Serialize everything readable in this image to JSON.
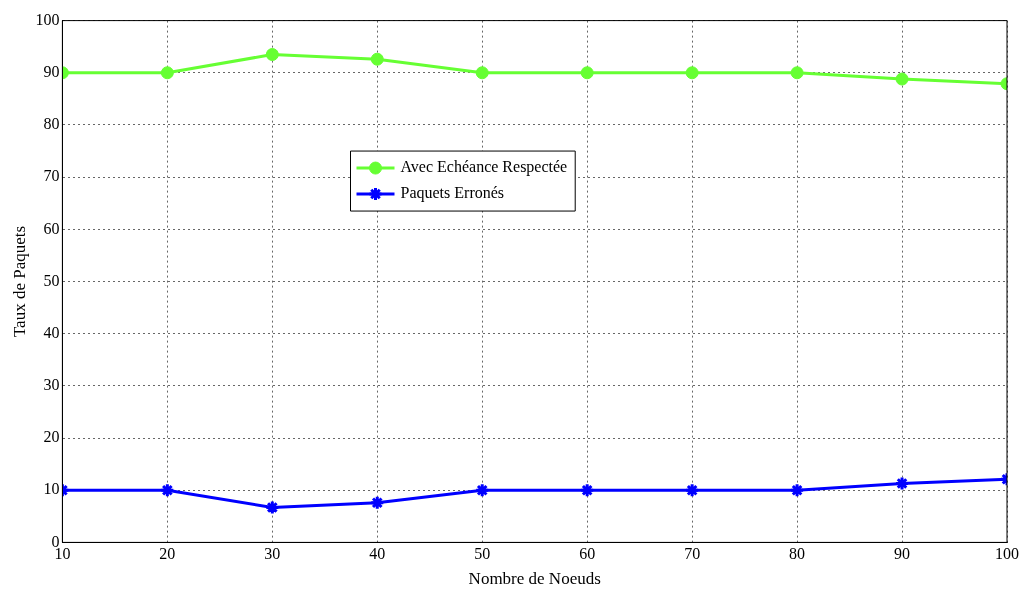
{
  "chart_data": {
    "type": "line",
    "xlabel": "Nombre de Noeuds",
    "ylabel": "Taux de Paquets",
    "x": [
      10,
      20,
      30,
      40,
      50,
      60,
      70,
      80,
      90,
      100
    ],
    "xlim": [
      10,
      100
    ],
    "xticks": [
      10,
      20,
      30,
      40,
      50,
      60,
      70,
      80,
      90,
      100
    ],
    "ylim": [
      0,
      100
    ],
    "yticks": [
      0,
      10,
      20,
      30,
      40,
      50,
      60,
      70,
      80,
      90,
      100
    ],
    "grid": true,
    "legend": "top",
    "line_style": "solid",
    "series": [
      {
        "name": "Avec Echéance Respectée",
        "color": "#66ff33",
        "marker": "circle",
        "values": [
          90,
          90,
          93.5,
          92.6,
          90,
          90,
          90,
          90,
          88.8,
          87.9
        ]
      },
      {
        "name": "Paquets Erronés",
        "color": "#0000ff",
        "marker": "cross",
        "values": [
          10,
          10,
          6.7,
          7.6,
          10,
          10,
          10,
          10,
          11.3,
          12.1
        ]
      }
    ]
  }
}
